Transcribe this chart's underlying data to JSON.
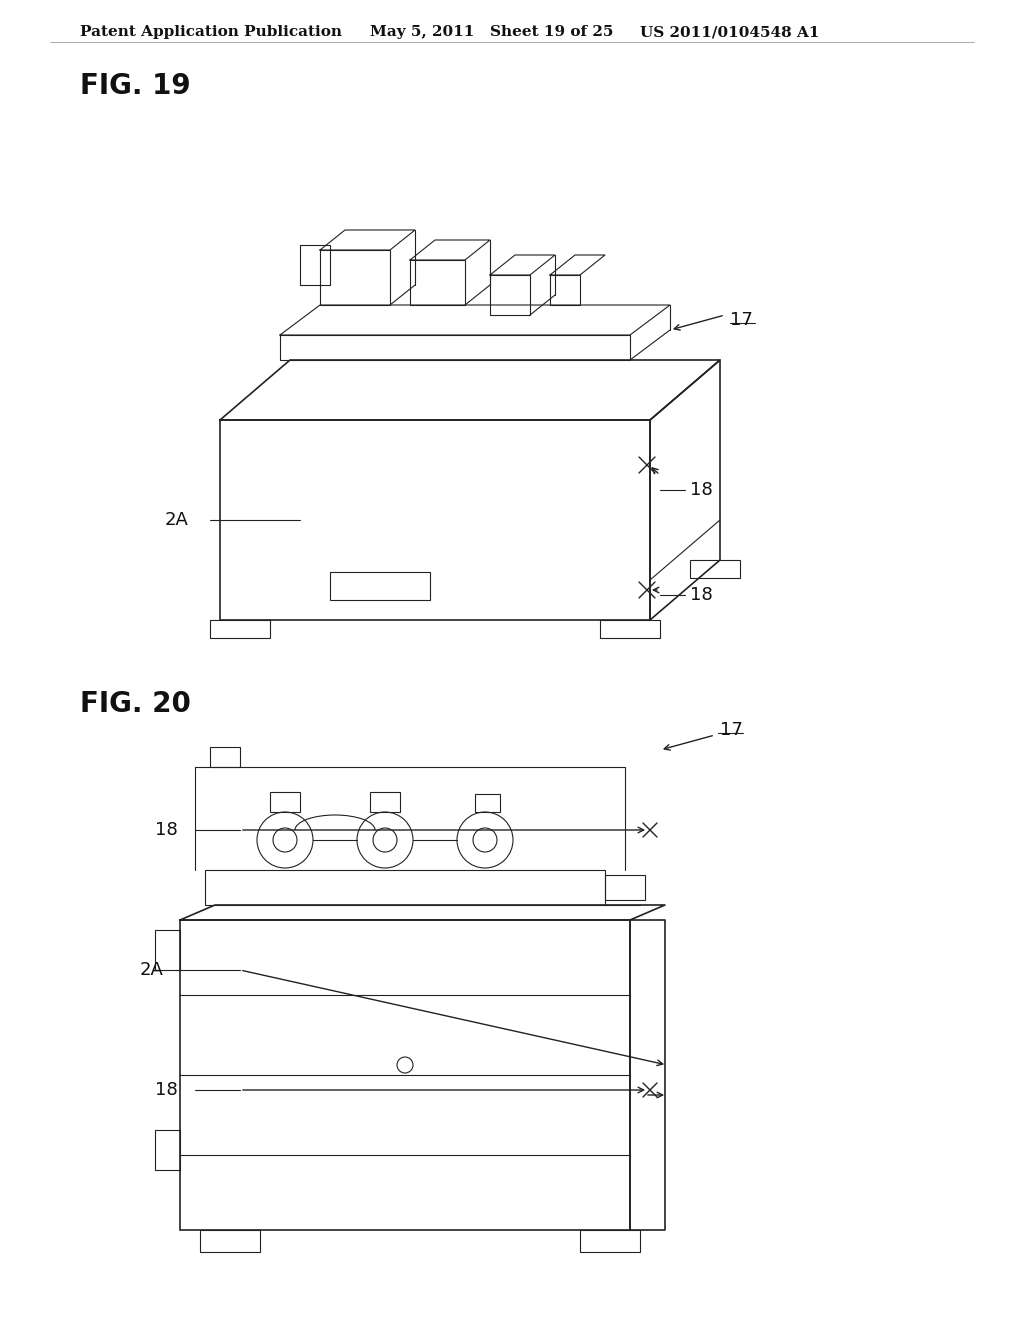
{
  "background_color": "#ffffff",
  "header_text": "Patent Application Publication",
  "header_date": "May 5, 2011",
  "header_sheet": "Sheet 19 of 25",
  "header_patent": "US 2011/0104548 A1",
  "fig19_label": "FIG. 19",
  "fig20_label": "FIG. 20",
  "label_17": "17",
  "label_18": "18",
  "label_2A": "2A",
  "line_color": "#222222",
  "text_color": "#111111",
  "header_fontsize": 11,
  "fig_label_fontsize": 20,
  "annotation_fontsize": 13
}
